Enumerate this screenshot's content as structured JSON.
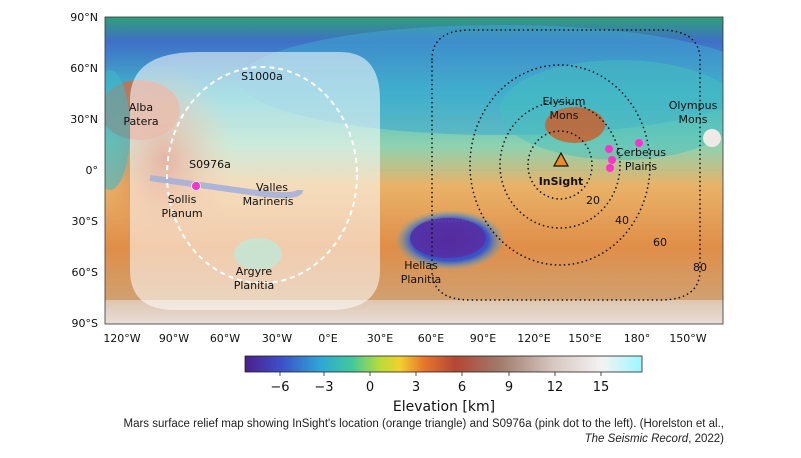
{
  "map": {
    "lat_labels": [
      "90°N",
      "60°N",
      "30°N",
      "0°",
      "30°S",
      "60°S",
      "90°S"
    ],
    "lon_labels": [
      "120°W",
      "90°W",
      "60°W",
      "30°W",
      "0°E",
      "30°E",
      "60°E",
      "90°E",
      "120°E",
      "150°E",
      "180°",
      "150°W"
    ],
    "features": {
      "alba": [
        "Alba",
        "Patera"
      ],
      "elysium": [
        "Elysium",
        "Mons"
      ],
      "olympus": [
        "Olympus",
        "Mons"
      ],
      "cerberus": [
        "Cerberus",
        "Plains"
      ],
      "valles": [
        "Valles",
        "Marineris"
      ],
      "sollis": [
        "Sollis",
        "Planum"
      ],
      "hellas": [
        "Hellas",
        "Planitia"
      ],
      "argyre": [
        "Argyre",
        "Planitia"
      ]
    },
    "events": {
      "s1000a": "S1000a",
      "s0976a": "S0976a"
    },
    "lander": "InSight",
    "distance_labels": [
      "20",
      "40",
      "60",
      "80"
    ]
  },
  "colorbar": {
    "ticks": [
      "−6",
      "−3",
      "0",
      "3",
      "6",
      "9",
      "12",
      "15"
    ],
    "label": "Elevation [km]"
  },
  "caption": {
    "line1": "Mars surface relief map showing InSight's location (orange triangle) and S0976a (pink dot to the left). (Horelston et al.,",
    "journal": "The Seismic Record",
    "year_tail": ", 2022)"
  },
  "colors": {
    "marker_pink": "#ff33cc",
    "marker_orange": "#f08a24",
    "highlands": "#e69a55",
    "lowlands": "#3fb6c4"
  }
}
